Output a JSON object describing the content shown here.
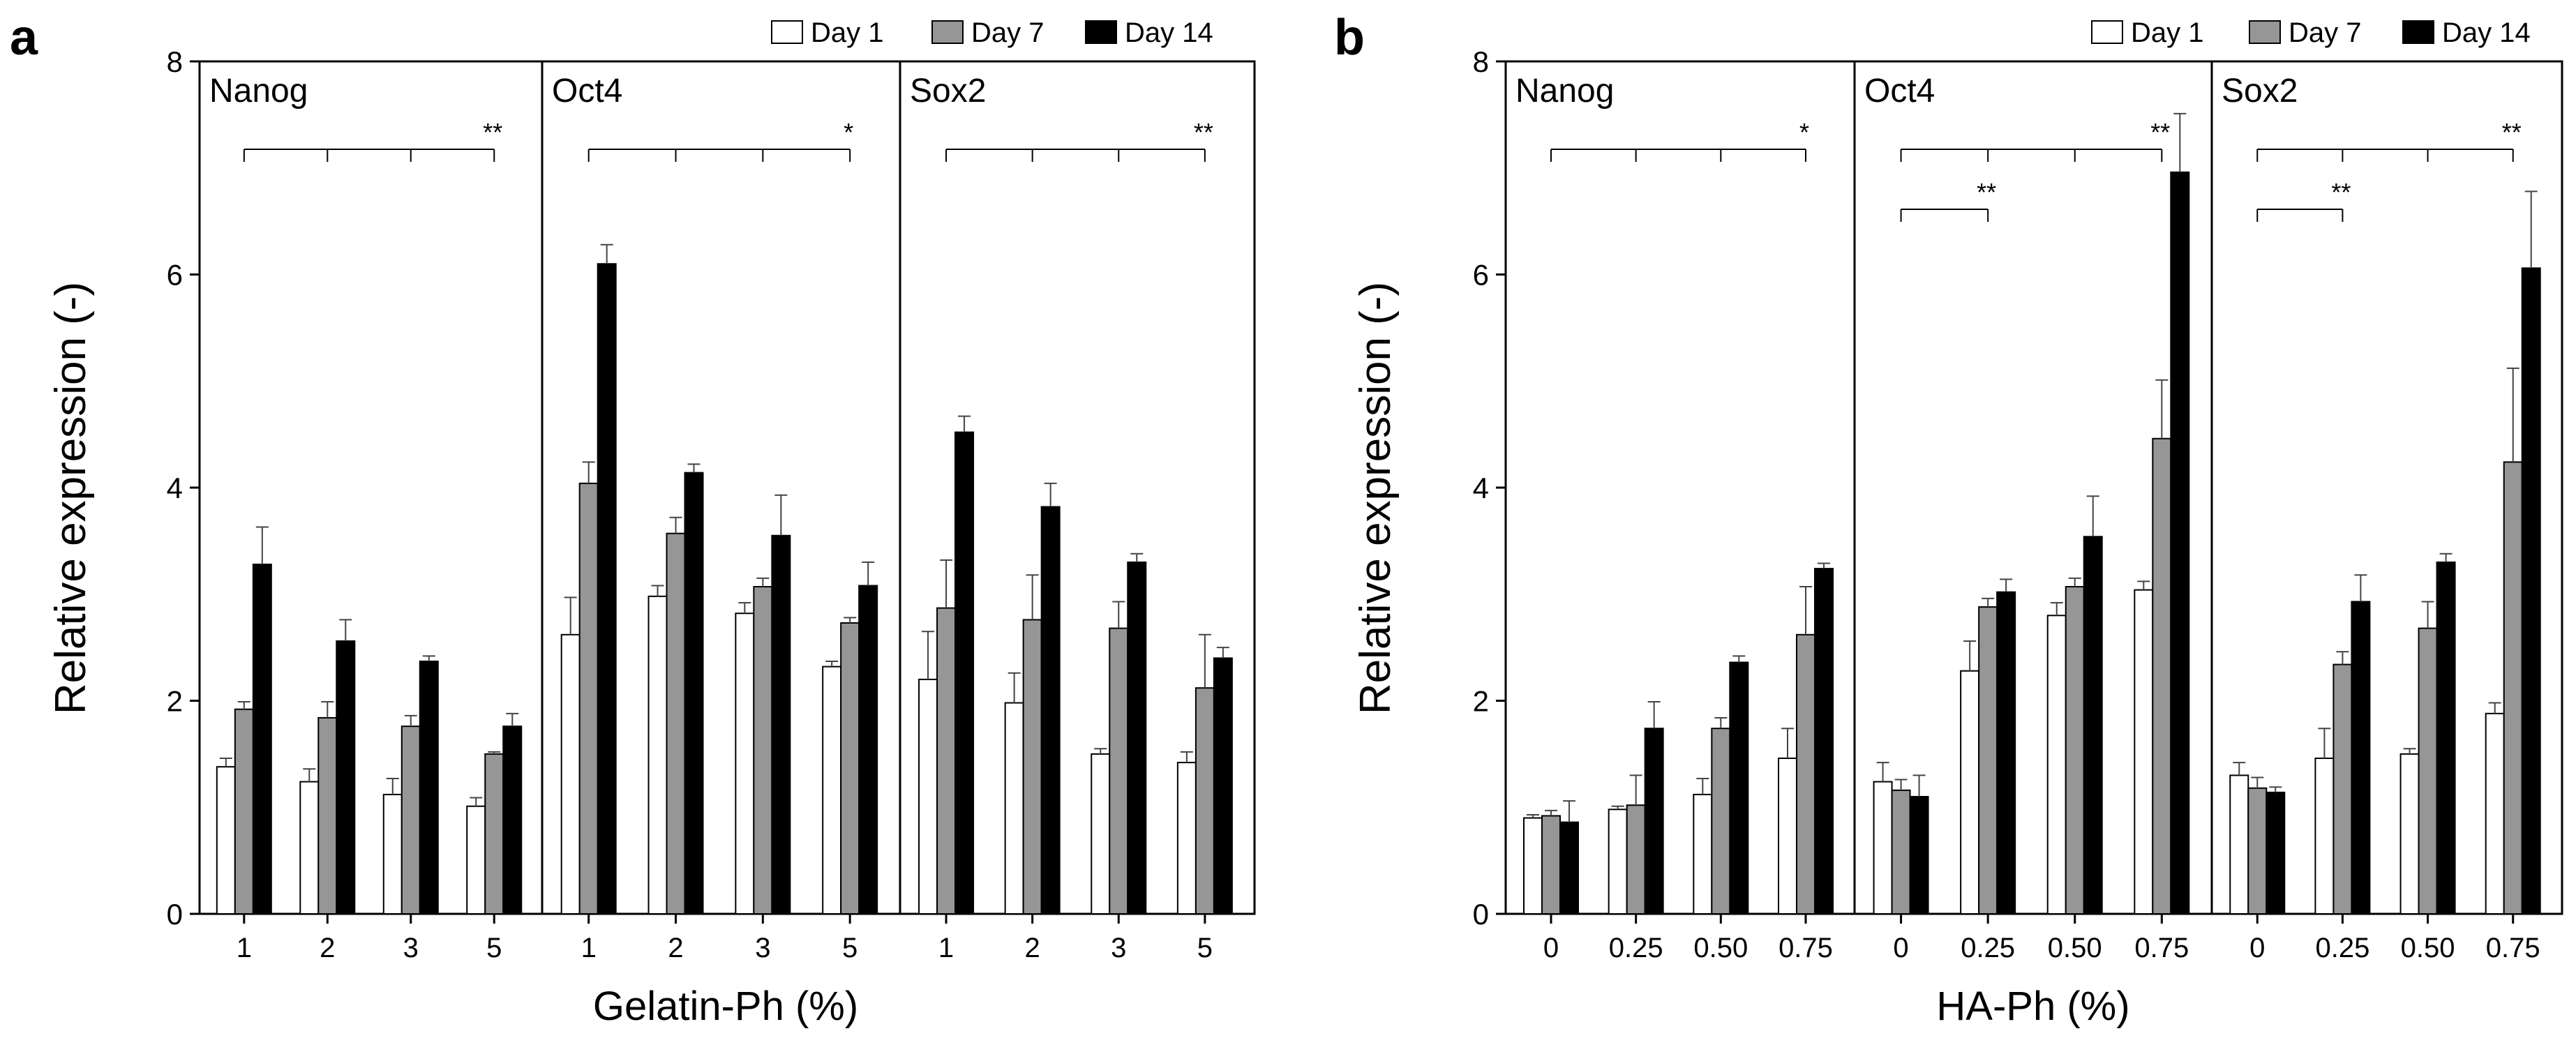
{
  "legend": {
    "entries": [
      {
        "label": "Day 1",
        "color": "#ffffff"
      },
      {
        "label": "Day 7",
        "color": "#969696"
      },
      {
        "label": "Day 14",
        "color": "#000000"
      }
    ],
    "placement": "top-right"
  },
  "chart_data": [
    {
      "panel_label": "a",
      "type": "bar",
      "title": "",
      "xlabel": "Gelatin-Ph (%)",
      "ylabel": "Relative expression (-)",
      "ylim": [
        0,
        8
      ],
      "yticks": [
        "0",
        "2",
        "4",
        "6",
        "8"
      ],
      "categories": [
        "1",
        "2",
        "3",
        "5"
      ],
      "groups": [
        {
          "name": "Nanog",
          "series": [
            {
              "name": "Day 1",
              "values": [
                1.38,
                1.24,
                1.12,
                1.01
              ],
              "errors": [
                0.08,
                0.12,
                0.15,
                0.08
              ]
            },
            {
              "name": "Day 7",
              "values": [
                1.92,
                1.84,
                1.76,
                1.5
              ],
              "errors": [
                0.07,
                0.15,
                0.1,
                0.02
              ]
            },
            {
              "name": "Day 14",
              "values": [
                3.28,
                2.56,
                2.37,
                1.76
              ],
              "errors": [
                0.35,
                0.2,
                0.05,
                0.12
              ]
            }
          ],
          "significance": [
            {
              "label": "**",
              "from": 0,
              "to": 3
            }
          ]
        },
        {
          "name": "Oct4",
          "series": [
            {
              "name": "Day 1",
              "values": [
                2.62,
                2.98,
                2.82,
                2.32
              ],
              "errors": [
                0.35,
                0.1,
                0.1,
                0.05
              ]
            },
            {
              "name": "Day 7",
              "values": [
                4.04,
                3.57,
                3.07,
                2.73
              ],
              "errors": [
                0.2,
                0.15,
                0.08,
                0.05
              ]
            },
            {
              "name": "Day 14",
              "values": [
                6.1,
                4.14,
                3.55,
                3.08
              ],
              "errors": [
                0.18,
                0.08,
                0.38,
                0.22
              ]
            }
          ],
          "significance": [
            {
              "label": "*",
              "from": 0,
              "to": 3
            }
          ]
        },
        {
          "name": "Sox2",
          "series": [
            {
              "name": "Day 1",
              "values": [
                2.2,
                1.98,
                1.5,
                1.42
              ],
              "errors": [
                0.45,
                0.28,
                0.05,
                0.1
              ]
            },
            {
              "name": "Day 7",
              "values": [
                2.87,
                2.76,
                2.68,
                2.12
              ],
              "errors": [
                0.45,
                0.42,
                0.25,
                0.5
              ]
            },
            {
              "name": "Day 14",
              "values": [
                4.52,
                3.82,
                3.3,
                2.4
              ],
              "errors": [
                0.15,
                0.22,
                0.08,
                0.1
              ]
            }
          ],
          "significance": [
            {
              "label": "**",
              "from": 0,
              "to": 3
            }
          ]
        }
      ]
    },
    {
      "panel_label": "b",
      "type": "bar",
      "title": "",
      "xlabel": "HA-Ph (%)",
      "ylabel": "Relative expression (-)",
      "ylim": [
        0,
        8
      ],
      "yticks": [
        "0",
        "2",
        "4",
        "6",
        "8"
      ],
      "categories": [
        "0",
        "0.25",
        "0.50",
        "0.75"
      ],
      "groups": [
        {
          "name": "Nanog",
          "series": [
            {
              "name": "Day 1",
              "values": [
                0.9,
                0.98,
                1.12,
                1.46
              ],
              "errors": [
                0.03,
                0.03,
                0.15,
                0.28
              ]
            },
            {
              "name": "Day 7",
              "values": [
                0.92,
                1.02,
                1.74,
                2.62
              ],
              "errors": [
                0.05,
                0.28,
                0.1,
                0.45
              ]
            },
            {
              "name": "Day 14",
              "values": [
                0.86,
                1.74,
                2.36,
                3.24
              ],
              "errors": [
                0.2,
                0.25,
                0.06,
                0.05
              ]
            }
          ],
          "significance": [
            {
              "label": "*",
              "from": 0,
              "to": 3
            }
          ]
        },
        {
          "name": "Oct4",
          "series": [
            {
              "name": "Day 1",
              "values": [
                1.24,
                2.28,
                2.8,
                3.04
              ],
              "errors": [
                0.18,
                0.28,
                0.12,
                0.08
              ]
            },
            {
              "name": "Day 7",
              "values": [
                1.16,
                2.88,
                3.07,
                4.46
              ],
              "errors": [
                0.1,
                0.08,
                0.08,
                0.55
              ]
            },
            {
              "name": "Day 14",
              "values": [
                1.1,
                3.02,
                3.54,
                6.96
              ],
              "errors": [
                0.2,
                0.12,
                0.38,
                0.55
              ]
            }
          ],
          "significance": [
            {
              "label": "**",
              "from": 0,
              "to": 1
            },
            {
              "label": "**",
              "from": 0,
              "to": 3
            }
          ]
        },
        {
          "name": "Sox2",
          "series": [
            {
              "name": "Day 1",
              "values": [
                1.3,
                1.46,
                1.5,
                1.88
              ],
              "errors": [
                0.12,
                0.28,
                0.05,
                0.1
              ]
            },
            {
              "name": "Day 7",
              "values": [
                1.18,
                2.34,
                2.68,
                4.24
              ],
              "errors": [
                0.1,
                0.12,
                0.25,
                0.88
              ]
            },
            {
              "name": "Day 14",
              "values": [
                1.14,
                2.93,
                3.3,
                6.06
              ],
              "errors": [
                0.05,
                0.25,
                0.08,
                0.72
              ]
            }
          ],
          "significance": [
            {
              "label": "**",
              "from": 0,
              "to": 1
            },
            {
              "label": "**",
              "from": 0,
              "to": 3
            }
          ]
        }
      ]
    }
  ]
}
